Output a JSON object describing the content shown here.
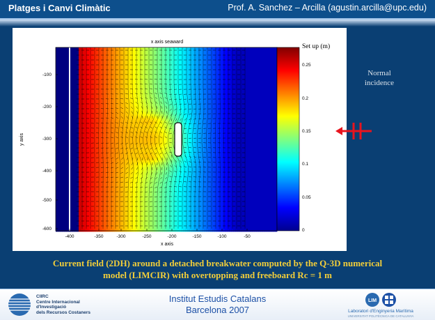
{
  "header": {
    "course_title": "Platges i Canvi Climàtic",
    "author": "Prof.  A. Sanchez – Arcilla (agustin.arcilla@upc.edu)"
  },
  "figure": {
    "title": "x axis seaward",
    "xlabel": "x axis",
    "ylabel": "y axis",
    "x_ticks": [
      "-400",
      "-350",
      "-300",
      "-250",
      "-200",
      "-150",
      "-100",
      "-50"
    ],
    "y_ticks": [
      "-100",
      "-200",
      "-300",
      "-400",
      "-500",
      "-600"
    ],
    "colorbar_title": "Set up (m)",
    "colorbar_ticks": [
      "0.25",
      "0.2",
      "0.15",
      "0.1",
      "0.05",
      "0"
    ]
  },
  "note": {
    "line1": "Normal",
    "line2": "incidence"
  },
  "caption": {
    "line1": "Current field (2DH) around a detached breakwater computed by the Q-3D numerical",
    "line2": "model (LIMCIR) with overtopping and freeboard Rc = 1 m"
  },
  "footer": {
    "institution_line1": "Institut Estudis Catalans",
    "institution_line2": "Barcelona  2007",
    "left_logo_text": [
      "CIIRC",
      "Centre Internacional",
      "d'Investigació",
      "dels Recursos Costaners"
    ],
    "right_logo_text": "Laboratori d'Enginyeria Marítima",
    "right_logo_subtext": "UNIVERSITAT POLITÈCNICA DE CATALUNYA",
    "right_logo_mark": "LIM"
  },
  "colors": {
    "header_bg": "#0d4f8c",
    "slide_bg": "#0a3f73",
    "caption": "#f2ce3a",
    "footer_text": "#1c50a6",
    "arrow": "#e8141e"
  }
}
